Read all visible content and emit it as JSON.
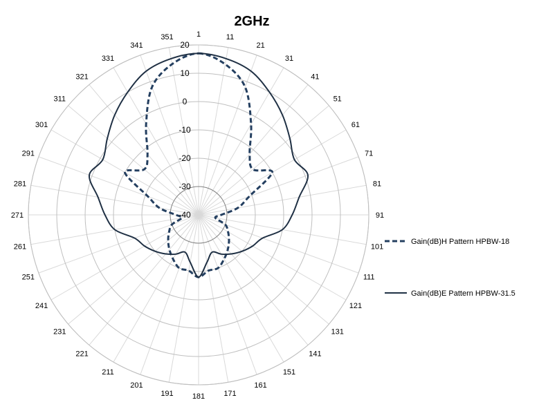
{
  "chart_data": {
    "type": "polar-line",
    "title": "2GHz",
    "r_ticks": [
      20,
      10,
      0,
      -10,
      -20,
      -30,
      -40
    ],
    "r_range": [
      -40,
      20
    ],
    "angle_ticks": [
      1,
      11,
      21,
      31,
      41,
      51,
      61,
      71,
      81,
      91,
      101,
      111,
      121,
      131,
      141,
      151,
      161,
      171,
      181,
      191,
      201,
      211,
      221,
      231,
      241,
      251,
      261,
      271,
      281,
      291,
      301,
      311,
      321,
      331,
      341,
      351
    ],
    "grid": true,
    "legend_position": "right",
    "series": [
      {
        "name": "Gain(dB)H Pattern HPBW-18",
        "style": "dashed",
        "color": "#243f60",
        "theta": [
          0,
          10,
          20,
          30,
          40,
          50,
          60,
          70,
          80,
          90,
          100,
          110,
          120,
          130,
          140,
          150,
          160,
          170,
          180,
          190,
          200,
          210,
          220,
          230,
          240,
          250,
          260,
          270,
          280,
          290,
          300,
          310,
          320,
          330,
          340,
          350
        ],
        "r": [
          17,
          14,
          8,
          -3,
          -12,
          -15,
          -10,
          -21,
          -26,
          -32,
          -34,
          -30,
          -28,
          -26,
          -24,
          -22,
          -20,
          -20,
          -18,
          -20,
          -20,
          -22,
          -24,
          -26,
          -28,
          -30,
          -34,
          -32,
          -26,
          -21,
          -10,
          -15,
          -12,
          -3,
          8,
          14
        ]
      },
      {
        "name": "Gain(dB)E Pattern HPBW-31.5",
        "style": "solid",
        "color": "#1f3044",
        "theta": [
          0,
          10,
          20,
          30,
          40,
          50,
          60,
          70,
          80,
          90,
          100,
          110,
          120,
          130,
          140,
          150,
          160,
          170,
          180,
          190,
          200,
          210,
          220,
          230,
          240,
          250,
          260,
          270,
          280,
          290,
          300,
          310,
          320,
          330,
          340,
          350
        ],
        "r": [
          17,
          16,
          14,
          10,
          6,
          2,
          -1,
          1,
          -4,
          -7,
          -10,
          -16,
          -18,
          -20,
          -22,
          -24,
          -26,
          -23,
          -18,
          -23,
          -26,
          -24,
          -22,
          -20,
          -18,
          -16,
          -10,
          -7,
          -4,
          1,
          -1,
          2,
          6,
          10,
          14,
          16
        ]
      }
    ]
  }
}
